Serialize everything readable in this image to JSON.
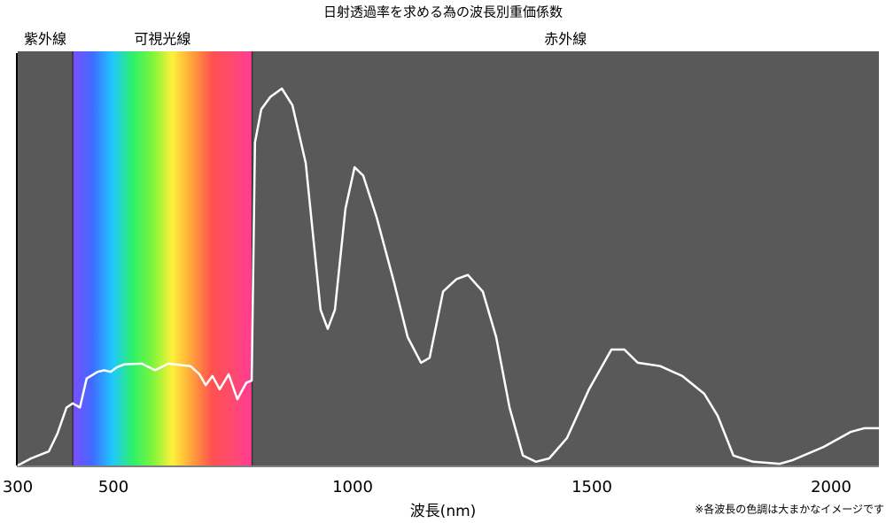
{
  "chart_data": {
    "type": "line",
    "title": "日射透過率を求める為の波長別重価係数",
    "x_label": "波長(nm)",
    "note": "※各波長の色調は大まかなイメージです",
    "regions": [
      {
        "name": "紫外線",
        "range": [
          300,
          415
        ],
        "color": "#595959"
      },
      {
        "name": "可視光線",
        "range": [
          415,
          790
        ],
        "colors": [
          "#7b4dff",
          "#3f6bff",
          "#1fc8ff",
          "#2df06a",
          "#7cf53a",
          "#fff03a",
          "#ffa03a",
          "#ff5050",
          "#ff4a70",
          "#ff3a95"
        ]
      },
      {
        "name": "赤外線",
        "range": [
          790,
          2100
        ],
        "color": "#595959"
      }
    ],
    "x": [
      300,
      328,
      365,
      383,
      402,
      415,
      430,
      444,
      467,
      481,
      494,
      507,
      522,
      559,
      587,
      615,
      661,
      680,
      693,
      707,
      722,
      741,
      759,
      778,
      789,
      796,
      809,
      828,
      852,
      874,
      902,
      933,
      948,
      963,
      985,
      1004,
      1022,
      1050,
      1087,
      1115,
      1143,
      1161,
      1189,
      1217,
      1241,
      1272,
      1300,
      1328,
      1356,
      1383,
      1411,
      1448,
      1494,
      1541,
      1568,
      1596,
      1643,
      1689,
      1735,
      1763,
      1796,
      1837,
      1893,
      1920,
      1985,
      2041,
      2069,
      2100
    ],
    "values": [
      0,
      1.7,
      3.4,
      7.7,
      14,
      15,
      14,
      21,
      22.6,
      23,
      22.6,
      23.7,
      24.4,
      24.6,
      23,
      24.6,
      24,
      22,
      19.4,
      21.6,
      18.4,
      22,
      16,
      20,
      20.5,
      78,
      86,
      89,
      91,
      87,
      73,
      37.6,
      33,
      37.6,
      62,
      72,
      70,
      60,
      44,
      31,
      24.8,
      26,
      42,
      45,
      46,
      42,
      31,
      14,
      2.4,
      0.9,
      1.7,
      6.6,
      18.4,
      28,
      28,
      24.8,
      24,
      21.6,
      17.3,
      12,
      2.4,
      0.9,
      0.4,
      1.3,
      4.5,
      8.1,
      9,
      9
    ],
    "color": "#ffffff",
    "xlim": [
      300,
      2100
    ],
    "xticks": [
      300,
      500,
      1000,
      1500,
      2000
    ],
    "ylim": [
      0,
      100
    ]
  }
}
